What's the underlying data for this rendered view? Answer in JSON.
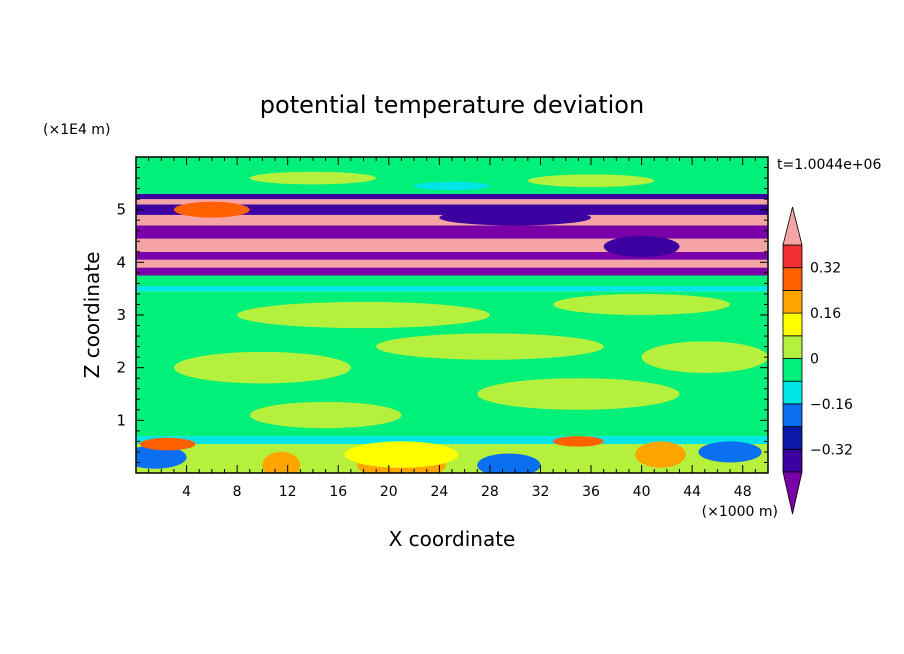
{
  "chart_data": {
    "type": "heatmap",
    "title": "potential temperature deviation",
    "xlabel": "X coordinate",
    "ylabel": "Z coordinate",
    "x_unit": "(×1000 m)",
    "y_unit": "(×1E4 m)",
    "time_label": "t=1.0044e+06",
    "xlim": [
      0,
      50
    ],
    "ylim": [
      0,
      6
    ],
    "x_ticks": [
      4,
      8,
      12,
      16,
      20,
      24,
      28,
      32,
      36,
      40,
      44,
      48
    ],
    "x_tick_labels": [
      "4",
      "8",
      "12",
      "16",
      "20",
      "24",
      "28",
      "32",
      "36",
      "40",
      "44",
      "48"
    ],
    "y_ticks": [
      1,
      2,
      3,
      4,
      5
    ],
    "y_tick_labels": [
      "1",
      "2",
      "3",
      "4",
      "5"
    ],
    "colorbar": {
      "levels": [
        -0.4,
        -0.32,
        -0.24,
        -0.16,
        -0.08,
        0,
        0.08,
        0.16,
        0.24,
        0.32,
        0.4
      ],
      "labels": [
        {
          "value": 0.32,
          "text": "0.32"
        },
        {
          "value": 0.16,
          "text": "0.16"
        },
        {
          "value": 0,
          "text": "0"
        },
        {
          "value": -0.16,
          "text": "−0.16"
        },
        {
          "value": -0.32,
          "text": "−0.32"
        }
      ],
      "colors": [
        "#7a00a8",
        "#3c00a0",
        "#0c18a8",
        "#0a6ff0",
        "#00e6e6",
        "#00f07a",
        "#b4f03c",
        "#ffff00",
        "#ffa500",
        "#ff6000",
        "#f03030",
        "#f4a4a4"
      ]
    },
    "bands": [
      {
        "z0": 0.0,
        "z1": 0.55,
        "base": "#b4f03c"
      },
      {
        "z0": 0.55,
        "z1": 0.7,
        "base": "#00e6e6"
      },
      {
        "z0": 0.7,
        "z1": 3.45,
        "base": "#00f07a"
      },
      {
        "z0": 3.45,
        "z1": 3.55,
        "base": "#00e6e6"
      },
      {
        "z0": 3.55,
        "z1": 3.75,
        "base": "#00f07a"
      },
      {
        "z0": 3.75,
        "z1": 3.9,
        "base": "#7a00a8"
      },
      {
        "z0": 3.9,
        "z1": 4.05,
        "base": "#f4a4a4"
      },
      {
        "z0": 4.05,
        "z1": 4.2,
        "base": "#7a00a8"
      },
      {
        "z0": 4.2,
        "z1": 4.45,
        "base": "#f4a4a4"
      },
      {
        "z0": 4.45,
        "z1": 4.7,
        "base": "#7a00a8"
      },
      {
        "z0": 4.7,
        "z1": 4.9,
        "base": "#f4a4a4"
      },
      {
        "z0": 4.9,
        "z1": 5.1,
        "base": "#3c00a0"
      },
      {
        "z0": 5.1,
        "z1": 5.2,
        "base": "#f4a4a4"
      },
      {
        "z0": 5.2,
        "z1": 5.3,
        "base": "#3c00a0"
      },
      {
        "z0": 5.3,
        "z1": 6.0,
        "base": "#00f07a"
      }
    ],
    "patches": [
      {
        "x": 1.5,
        "z": 0.3,
        "rx": 2.5,
        "rz": 0.22,
        "color": "#0a6ff0"
      },
      {
        "x": 2.5,
        "z": 0.55,
        "rx": 2.2,
        "rz": 0.12,
        "color": "#ff6000"
      },
      {
        "x": 11.5,
        "z": 0.15,
        "rx": 1.5,
        "rz": 0.25,
        "color": "#ffa500"
      },
      {
        "x": 21,
        "z": 0.15,
        "rx": 3.5,
        "rz": 0.28,
        "color": "#ffa500"
      },
      {
        "x": 21,
        "z": 0.35,
        "rx": 4.5,
        "rz": 0.25,
        "color": "#ffff00"
      },
      {
        "x": 29.5,
        "z": 0.15,
        "rx": 2.5,
        "rz": 0.22,
        "color": "#0a6ff0"
      },
      {
        "x": 35,
        "z": 0.6,
        "rx": 2.0,
        "rz": 0.1,
        "color": "#ff6000"
      },
      {
        "x": 41.5,
        "z": 0.35,
        "rx": 2.0,
        "rz": 0.25,
        "color": "#ffa500"
      },
      {
        "x": 47,
        "z": 0.4,
        "rx": 2.5,
        "rz": 0.2,
        "color": "#0a6ff0"
      },
      {
        "x": 15,
        "z": 1.1,
        "rx": 6,
        "rz": 0.25,
        "color": "#b4f03c"
      },
      {
        "x": 35,
        "z": 1.5,
        "rx": 8,
        "rz": 0.3,
        "color": "#b4f03c"
      },
      {
        "x": 10,
        "z": 2.0,
        "rx": 7,
        "rz": 0.3,
        "color": "#b4f03c"
      },
      {
        "x": 28,
        "z": 2.4,
        "rx": 9,
        "rz": 0.25,
        "color": "#b4f03c"
      },
      {
        "x": 45,
        "z": 2.2,
        "rx": 5,
        "rz": 0.3,
        "color": "#b4f03c"
      },
      {
        "x": 18,
        "z": 3.0,
        "rx": 10,
        "rz": 0.25,
        "color": "#b4f03c"
      },
      {
        "x": 40,
        "z": 3.2,
        "rx": 7,
        "rz": 0.2,
        "color": "#b4f03c"
      },
      {
        "x": 6,
        "z": 5.0,
        "rx": 3,
        "rz": 0.15,
        "color": "#ff6000"
      },
      {
        "x": 30,
        "z": 4.85,
        "rx": 6,
        "rz": 0.15,
        "color": "#3c00a0"
      },
      {
        "x": 40,
        "z": 4.3,
        "rx": 3,
        "rz": 0.2,
        "color": "#3c00a0"
      },
      {
        "x": 14,
        "z": 5.6,
        "rx": 5,
        "rz": 0.12,
        "color": "#b4f03c"
      },
      {
        "x": 36,
        "z": 5.55,
        "rx": 5,
        "rz": 0.12,
        "color": "#b4f03c"
      },
      {
        "x": 25,
        "z": 5.45,
        "rx": 3,
        "rz": 0.08,
        "color": "#00e6e6"
      }
    ]
  }
}
